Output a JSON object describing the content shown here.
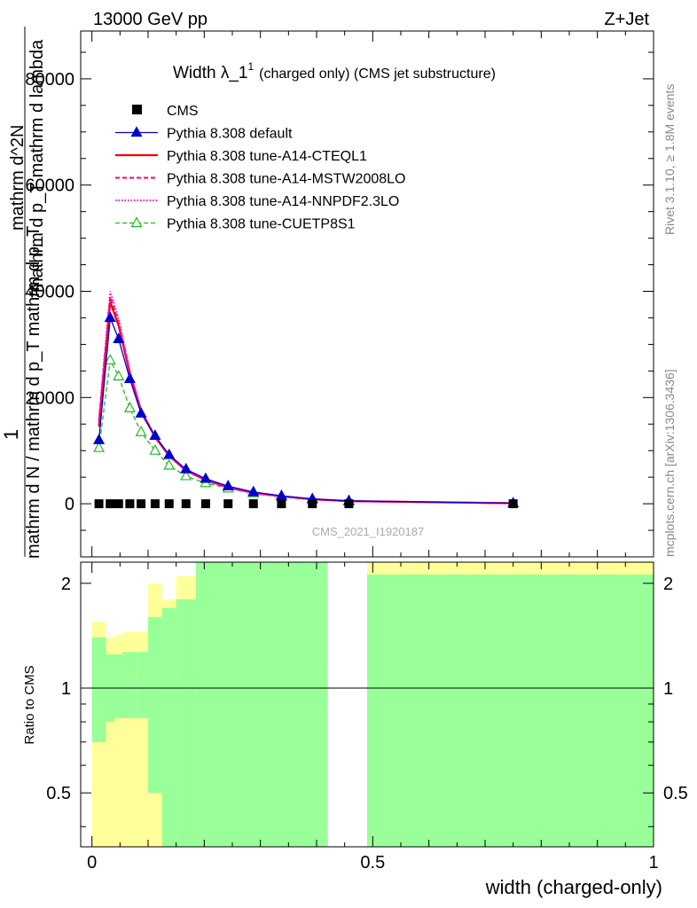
{
  "header": {
    "left": "13000 GeV pp",
    "right": "Z+Jet",
    "plot_title_main": "Width λ_1",
    "plot_title_sup": "1",
    "plot_title_rest": "(charged only) (CMS jet substructure)",
    "watermark": "CMS_2021_I1920187",
    "side_rivet": "Rivet 3.1.10, ≥ 1.8M events",
    "side_mcplots": "mcplots.cern.ch [arXiv:1306.3436]"
  },
  "main_ylabel": {
    "line1": "1",
    "line2": "mathrm d N / mathrm d p_T mathrm d p_T",
    "line3": "mathrm d^2N",
    "line4": "mathrm d p_T mathrm d lambda"
  },
  "ratio_ylabel": "Ratio to CMS",
  "xlabel": "width (charged-only)",
  "colors": {
    "cms": "#000000",
    "default": "#0000cc",
    "cteql1": "#ee0000",
    "mstw": "#ff0066",
    "nnpdf": "#ff00cc",
    "cuetp8s1": "#22bb22",
    "band_green": "#99ff99",
    "band_yellow": "#ffff99"
  },
  "chart_data": {
    "type": "line",
    "x_ticks": [
      "0",
      "0.5",
      "1"
    ],
    "y_ticks_main": [
      "0",
      "20000",
      "40000",
      "60000",
      "80000"
    ],
    "y_ticks_ratio": [
      "0.5",
      "1",
      "2"
    ],
    "xlim": [
      -0.02,
      1.0
    ],
    "ylim_main": [
      -10000,
      89000
    ],
    "ylim_ratio": [
      0.35,
      2.3
    ],
    "legend_position": "top-left",
    "x": [
      0.0125,
      0.0325,
      0.0475,
      0.0675,
      0.0875,
      0.1125,
      0.1375,
      0.1675,
      0.2025,
      0.2425,
      0.2875,
      0.3375,
      0.3925,
      0.4575,
      0.75
    ],
    "series": [
      {
        "name": "CMS",
        "style": "square",
        "values": [
          0,
          0,
          0,
          0,
          0,
          0,
          0,
          0,
          0,
          0,
          0,
          0,
          0,
          0,
          0
        ]
      },
      {
        "name": "Pythia 8.308 default",
        "style": "solid-triangle",
        "values": [
          12000,
          35000,
          31000,
          23500,
          17000,
          12800,
          9200,
          6500,
          4700,
          3300,
          2200,
          1500,
          900,
          550,
          100
        ]
      },
      {
        "name": "Pythia 8.308 tune-A14-CTEQL1",
        "style": "solid",
        "values": [
          14500,
          38000,
          33500,
          24500,
          17500,
          12500,
          9000,
          6300,
          4500,
          3100,
          2100,
          1400,
          850,
          500,
          100
        ]
      },
      {
        "name": "Pythia 8.308 tune-A14-MSTW2008LO",
        "style": "dashed",
        "values": [
          15500,
          39000,
          34000,
          24800,
          17600,
          12600,
          9000,
          6200,
          4400,
          3000,
          2000,
          1350,
          820,
          480,
          100
        ]
      },
      {
        "name": "Pythia 8.308 tune-A14-NNPDF2.3LO",
        "style": "dotted",
        "values": [
          16000,
          40000,
          34800,
          25000,
          17700,
          12600,
          9000,
          6200,
          4400,
          3000,
          2000,
          1350,
          820,
          480,
          100
        ]
      },
      {
        "name": "Pythia 8.308 tune-CUETP8S1",
        "style": "dashed-open-triangle",
        "values": [
          10500,
          27000,
          24000,
          18000,
          13500,
          10000,
          7200,
          5200,
          3900,
          2900,
          2000,
          1350,
          800,
          450,
          100
        ]
      }
    ],
    "ratio_bands": [
      {
        "x0": 0.0,
        "x1": 0.025,
        "green_lo": 0.7,
        "green_hi": 1.4,
        "yellow_lo": 0.35,
        "yellow_hi": 1.55
      },
      {
        "x0": 0.025,
        "x1": 0.04,
        "green_lo": 0.8,
        "green_hi": 1.25,
        "yellow_lo": 0.35,
        "yellow_hi": 1.4
      },
      {
        "x0": 0.04,
        "x1": 0.055,
        "green_lo": 0.82,
        "green_hi": 1.25,
        "yellow_lo": 0.35,
        "yellow_hi": 1.42
      },
      {
        "x0": 0.055,
        "x1": 0.08,
        "green_lo": 0.82,
        "green_hi": 1.27,
        "yellow_lo": 0.35,
        "yellow_hi": 1.45
      },
      {
        "x0": 0.08,
        "x1": 0.1,
        "green_lo": 0.82,
        "green_hi": 1.27,
        "yellow_lo": 0.35,
        "yellow_hi": 1.45
      },
      {
        "x0": 0.1,
        "x1": 0.125,
        "green_lo": 0.5,
        "green_hi": 1.6,
        "yellow_lo": 0.35,
        "yellow_hi": 2.0
      },
      {
        "x0": 0.125,
        "x1": 0.15,
        "green_lo": 0.35,
        "green_hi": 1.7,
        "yellow_lo": 0.35,
        "yellow_hi": 1.8
      },
      {
        "x0": 0.15,
        "x1": 0.185,
        "green_lo": 0.35,
        "green_hi": 1.8,
        "yellow_lo": 0.35,
        "yellow_hi": 2.1
      },
      {
        "x0": 0.185,
        "x1": 0.42,
        "green_lo": 0.35,
        "green_hi": 2.3,
        "yellow_lo": 0.35,
        "yellow_hi": 2.3
      },
      {
        "x0": 0.49,
        "x1": 1.0,
        "green_lo": 0.35,
        "green_hi": 2.12,
        "yellow_lo": 0.35,
        "yellow_hi": 2.3
      }
    ]
  }
}
